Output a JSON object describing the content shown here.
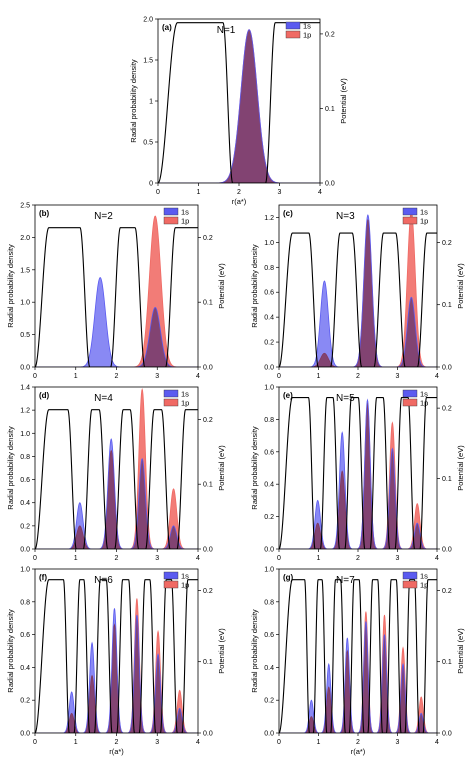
{
  "figure": {
    "y_label": "Radial probability density",
    "y2_label": "Potential (eV)",
    "x_label": "r(a*)"
  },
  "chart_data": [
    {
      "panel": "(a)",
      "title": "N=1",
      "type": "area",
      "xlim": [
        0,
        4
      ],
      "ylim": [
        0,
        2.0
      ],
      "y2lim": [
        0,
        0.22
      ],
      "x_ticks": [
        0,
        1,
        2,
        3,
        4
      ],
      "y_ticks": [
        0,
        0.5,
        1.0,
        1.5,
        2.0
      ],
      "y_tick_labels": [
        "0",
        "0.5",
        "1",
        "1.5",
        "2.0"
      ],
      "y2_ticks": [
        0,
        0.1,
        0.2
      ],
      "y2_tick_labels": [
        "0.0",
        "0.1",
        "0.2"
      ],
      "legend": [
        {
          "name": "1s",
          "color": "#5b5bf0"
        },
        {
          "name": "1p",
          "color": "#f06a64"
        }
      ],
      "legend_position": "top-right",
      "barrier_eV": 0.215,
      "well_centers": [
        2.25
      ],
      "well_width": 1.05,
      "series": [
        {
          "name": "1s",
          "peaks": [
            {
              "x": 2.25,
              "h": 1.87,
              "w": 0.2
            }
          ]
        },
        {
          "name": "1p",
          "peaks": [
            {
              "x": 2.25,
              "h": 1.87,
              "w": 0.2
            }
          ]
        }
      ]
    },
    {
      "panel": "(b)",
      "title": "N=2",
      "type": "area",
      "xlim": [
        0,
        4
      ],
      "ylim": [
        0,
        2.5
      ],
      "y2lim": [
        0,
        0.25
      ],
      "x_ticks": [
        0,
        1,
        2,
        3,
        4
      ],
      "y_ticks": [
        0,
        0.5,
        1.0,
        1.5,
        2.0,
        2.5
      ],
      "y_tick_labels": [
        "0.0",
        "0.5",
        "1.0",
        "1.5",
        "2.0",
        "2.5"
      ],
      "y2_ticks": [
        0,
        0.1,
        0.2
      ],
      "y2_tick_labels": [
        "0.0",
        "0.1",
        "0.2"
      ],
      "legend": [
        {
          "name": "1s",
          "color": "#5b5bf0"
        },
        {
          "name": "1p",
          "color": "#f06a64"
        }
      ],
      "legend_position": "top-right",
      "barrier_eV": 0.215,
      "well_centers": [
        1.6,
        2.95
      ],
      "well_width": 0.75,
      "series": [
        {
          "name": "1s",
          "peaks": [
            {
              "x": 1.6,
              "h": 1.38,
              "w": 0.13
            },
            {
              "x": 2.95,
              "h": 0.92,
              "w": 0.13
            }
          ]
        },
        {
          "name": "1p",
          "peaks": [
            {
              "x": 2.95,
              "h": 2.33,
              "w": 0.14
            }
          ]
        }
      ]
    },
    {
      "panel": "(c)",
      "title": "N=3",
      "type": "area",
      "xlim": [
        0,
        4
      ],
      "ylim": [
        0,
        1.3
      ],
      "y2lim": [
        0,
        0.26
      ],
      "x_ticks": [
        0,
        1,
        2,
        3,
        4
      ],
      "y_ticks": [
        0,
        0.2,
        0.4,
        0.6,
        0.8,
        1.0,
        1.2
      ],
      "y_tick_labels": [
        "0.0",
        "0.2",
        "0.4",
        "0.6",
        "0.8",
        "1.0",
        "1.2"
      ],
      "y2_ticks": [
        0,
        0.1,
        0.2
      ],
      "y2_tick_labels": [
        "0.0",
        "0.1",
        "0.2"
      ],
      "legend": [
        {
          "name": "1s",
          "color": "#5b5bf0"
        },
        {
          "name": "1p",
          "color": "#f06a64"
        }
      ],
      "legend_position": "top-right",
      "barrier_eV": 0.215,
      "well_centers": [
        1.15,
        2.25,
        3.35
      ],
      "well_width": 0.55,
      "series": [
        {
          "name": "1s",
          "peaks": [
            {
              "x": 1.15,
              "h": 0.69,
              "w": 0.1
            },
            {
              "x": 2.25,
              "h": 1.22,
              "w": 0.1
            },
            {
              "x": 3.35,
              "h": 0.56,
              "w": 0.1
            }
          ]
        },
        {
          "name": "1p",
          "peaks": [
            {
              "x": 1.15,
              "h": 0.11,
              "w": 0.1
            },
            {
              "x": 2.25,
              "h": 1.18,
              "w": 0.1
            },
            {
              "x": 3.35,
              "h": 1.25,
              "w": 0.1
            }
          ]
        }
      ]
    },
    {
      "panel": "(d)",
      "title": "N=4",
      "type": "area",
      "xlim": [
        0,
        4
      ],
      "ylim": [
        0,
        1.4
      ],
      "y2lim": [
        0,
        0.25
      ],
      "x_ticks": [
        0,
        1,
        2,
        3,
        4
      ],
      "y_ticks": [
        0,
        0.2,
        0.4,
        0.6,
        0.8,
        1.0,
        1.2,
        1.4
      ],
      "y_tick_labels": [
        "0.0",
        "0.2",
        "0.4",
        "0.6",
        "0.8",
        "1.0",
        "1.2",
        "1.4"
      ],
      "y2_ticks": [
        0,
        0.1,
        0.2
      ],
      "y2_tick_labels": [
        "0.0",
        "0.1",
        "0.2"
      ],
      "legend": [
        {
          "name": "1s",
          "color": "#5b5bf0"
        },
        {
          "name": "1p",
          "color": "#f06a64"
        }
      ],
      "legend_position": "top-right",
      "barrier_eV": 0.215,
      "well_centers": [
        1.1,
        1.87,
        2.63,
        3.4
      ],
      "well_width": 0.38,
      "series": [
        {
          "name": "1s",
          "peaks": [
            {
              "x": 1.1,
              "h": 0.4,
              "w": 0.08
            },
            {
              "x": 1.87,
              "h": 0.95,
              "w": 0.08
            },
            {
              "x": 2.63,
              "h": 0.78,
              "w": 0.08
            },
            {
              "x": 3.4,
              "h": 0.2,
              "w": 0.08
            }
          ]
        },
        {
          "name": "1p",
          "peaks": [
            {
              "x": 1.1,
              "h": 0.2,
              "w": 0.08
            },
            {
              "x": 1.87,
              "h": 0.85,
              "w": 0.08
            },
            {
              "x": 2.63,
              "h": 1.38,
              "w": 0.08
            },
            {
              "x": 3.4,
              "h": 0.52,
              "w": 0.08
            }
          ]
        }
      ]
    },
    {
      "panel": "(e)",
      "title": "N=5",
      "type": "area",
      "xlim": [
        0,
        4
      ],
      "ylim": [
        0,
        1.0
      ],
      "y2lim": [
        0,
        0.23
      ],
      "x_ticks": [
        0,
        1,
        2,
        3,
        4
      ],
      "y_ticks": [
        0,
        0.2,
        0.4,
        0.6,
        0.8,
        1.0
      ],
      "y_tick_labels": [
        "0.0",
        "0.2",
        "0.4",
        "0.6",
        "0.8",
        "1.0"
      ],
      "y2_ticks": [
        0,
        0.1,
        0.2
      ],
      "y2_tick_labels": [
        "0.0",
        "0.1",
        "0.2"
      ],
      "legend": [
        {
          "name": "1s",
          "color": "#5b5bf0"
        },
        {
          "name": "1p",
          "color": "#f06a64"
        }
      ],
      "legend_position": "top-right",
      "barrier_eV": 0.215,
      "well_centers": [
        0.98,
        1.6,
        2.24,
        2.87,
        3.5
      ],
      "well_width": 0.3,
      "series": [
        {
          "name": "1s",
          "peaks": [
            {
              "x": 0.98,
              "h": 0.3,
              "w": 0.07
            },
            {
              "x": 1.6,
              "h": 0.72,
              "w": 0.07
            },
            {
              "x": 2.24,
              "h": 0.92,
              "w": 0.07
            },
            {
              "x": 2.87,
              "h": 0.62,
              "w": 0.07
            },
            {
              "x": 3.5,
              "h": 0.16,
              "w": 0.07
            }
          ]
        },
        {
          "name": "1p",
          "peaks": [
            {
              "x": 0.98,
              "h": 0.16,
              "w": 0.07
            },
            {
              "x": 1.6,
              "h": 0.48,
              "w": 0.07
            },
            {
              "x": 2.24,
              "h": 0.9,
              "w": 0.07
            },
            {
              "x": 2.87,
              "h": 0.78,
              "w": 0.07
            },
            {
              "x": 3.5,
              "h": 0.28,
              "w": 0.07
            }
          ]
        }
      ]
    },
    {
      "panel": "(f)",
      "title": "N=6",
      "type": "area",
      "xlim": [
        0,
        4
      ],
      "ylim": [
        0,
        1.0
      ],
      "y2lim": [
        0,
        0.23
      ],
      "x_ticks": [
        0,
        1,
        2,
        3,
        4
      ],
      "y_ticks": [
        0,
        0.2,
        0.4,
        0.6,
        0.8,
        1.0
      ],
      "y_tick_labels": [
        "0.0",
        "0.2",
        "0.4",
        "0.6",
        "0.8",
        "1.0"
      ],
      "y2_ticks": [
        0,
        0.1,
        0.2
      ],
      "y2_tick_labels": [
        "0.0",
        "0.1",
        "0.2"
      ],
      "legend": [
        {
          "name": "1s",
          "color": "#5b5bf0"
        },
        {
          "name": "1p",
          "color": "#f06a64"
        }
      ],
      "legend_position": "top-right",
      "barrier_eV": 0.215,
      "well_centers": [
        0.9,
        1.4,
        1.95,
        2.5,
        3.02,
        3.55
      ],
      "well_width": 0.26,
      "series": [
        {
          "name": "1s",
          "peaks": [
            {
              "x": 0.9,
              "h": 0.25,
              "w": 0.06
            },
            {
              "x": 1.4,
              "h": 0.55,
              "w": 0.06
            },
            {
              "x": 1.95,
              "h": 0.76,
              "w": 0.06
            },
            {
              "x": 2.5,
              "h": 0.72,
              "w": 0.06
            },
            {
              "x": 3.02,
              "h": 0.48,
              "w": 0.06
            },
            {
              "x": 3.55,
              "h": 0.15,
              "w": 0.06
            }
          ]
        },
        {
          "name": "1p",
          "peaks": [
            {
              "x": 0.9,
              "h": 0.12,
              "w": 0.06
            },
            {
              "x": 1.4,
              "h": 0.35,
              "w": 0.06
            },
            {
              "x": 1.95,
              "h": 0.66,
              "w": 0.06
            },
            {
              "x": 2.5,
              "h": 0.82,
              "w": 0.06
            },
            {
              "x": 3.02,
              "h": 0.62,
              "w": 0.06
            },
            {
              "x": 3.55,
              "h": 0.26,
              "w": 0.06
            }
          ]
        }
      ]
    },
    {
      "panel": "(g)",
      "title": "N=7",
      "type": "area",
      "xlim": [
        0,
        4
      ],
      "ylim": [
        0,
        1.0
      ],
      "y2lim": [
        0,
        0.23
      ],
      "x_ticks": [
        0,
        1,
        2,
        3,
        4
      ],
      "y_ticks": [
        0,
        0.2,
        0.4,
        0.6,
        0.8,
        1.0
      ],
      "y_tick_labels": [
        "0.0",
        "0.2",
        "0.4",
        "0.6",
        "0.8",
        "1.0"
      ],
      "y2_ticks": [
        0,
        0.1,
        0.2
      ],
      "y2_tick_labels": [
        "0.0",
        "0.1",
        "0.2"
      ],
      "legend": [
        {
          "name": "1s",
          "color": "#5b5bf0"
        },
        {
          "name": "1p",
          "color": "#f06a64"
        }
      ],
      "legend_position": "top-right",
      "barrier_eV": 0.215,
      "well_centers": [
        0.82,
        1.26,
        1.73,
        2.2,
        2.67,
        3.14,
        3.6
      ],
      "well_width": 0.22,
      "series": [
        {
          "name": "1s",
          "peaks": [
            {
              "x": 0.82,
              "h": 0.2,
              "w": 0.055
            },
            {
              "x": 1.26,
              "h": 0.42,
              "w": 0.055
            },
            {
              "x": 1.73,
              "h": 0.58,
              "w": 0.055
            },
            {
              "x": 2.2,
              "h": 0.68,
              "w": 0.055
            },
            {
              "x": 2.67,
              "h": 0.6,
              "w": 0.055
            },
            {
              "x": 3.14,
              "h": 0.42,
              "w": 0.055
            },
            {
              "x": 3.6,
              "h": 0.12,
              "w": 0.055
            }
          ]
        },
        {
          "name": "1p",
          "peaks": [
            {
              "x": 0.82,
              "h": 0.1,
              "w": 0.055
            },
            {
              "x": 1.26,
              "h": 0.28,
              "w": 0.055
            },
            {
              "x": 1.73,
              "h": 0.5,
              "w": 0.055
            },
            {
              "x": 2.2,
              "h": 0.74,
              "w": 0.055
            },
            {
              "x": 2.67,
              "h": 0.72,
              "w": 0.055
            },
            {
              "x": 3.14,
              "h": 0.52,
              "w": 0.055
            },
            {
              "x": 3.6,
              "h": 0.22,
              "w": 0.055
            }
          ]
        }
      ]
    }
  ]
}
